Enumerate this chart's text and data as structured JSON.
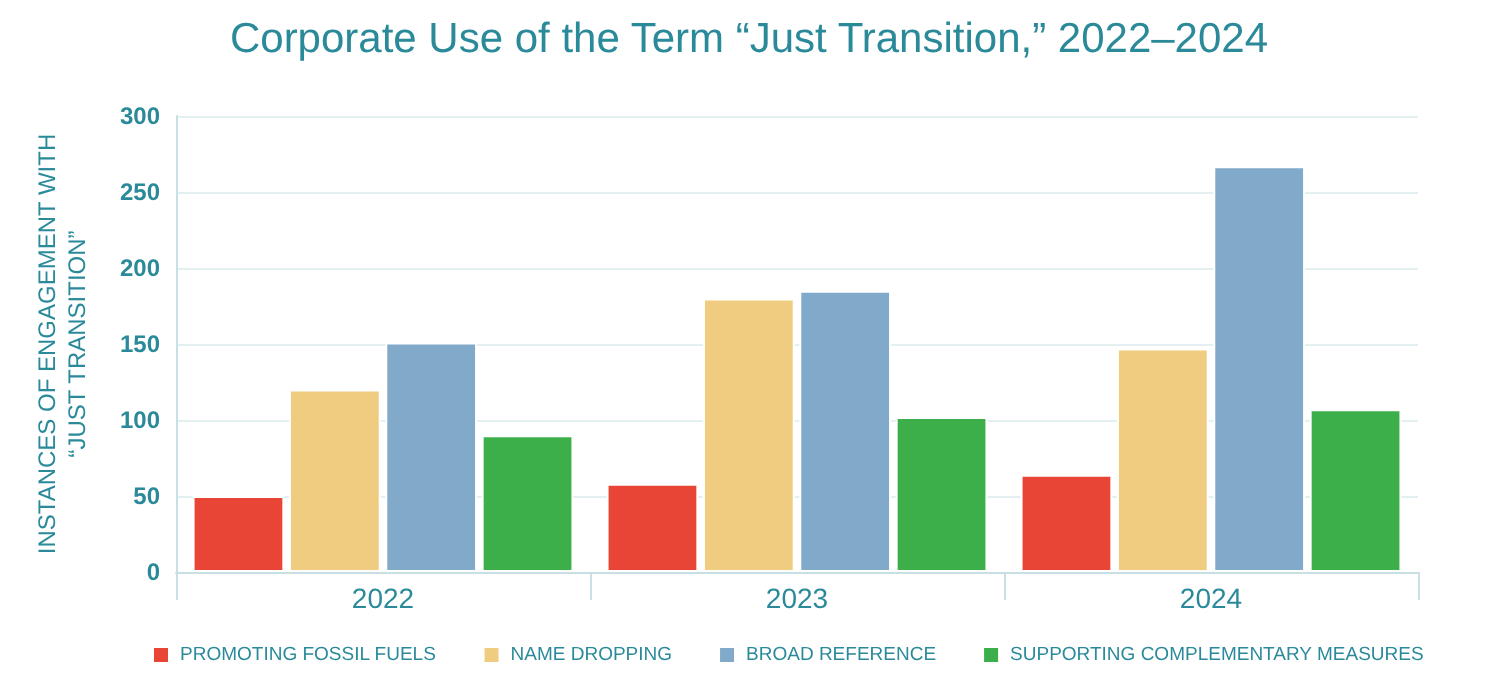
{
  "chart_data": {
    "type": "bar",
    "title": "Corporate Use of the Term “Just Transition,” 2022–2024",
    "ylabel": "INSTANCES OF ENGAGEMENT WITH\n“JUST TRANSITION”",
    "categories": [
      "2022",
      "2023",
      "2024"
    ],
    "series": [
      {
        "name": "PROMOTING FOSSIL FUELS",
        "color": "#e94536",
        "values": [
          50,
          58,
          64
        ]
      },
      {
        "name": "NAME DROPPING",
        "color": "#f0cc80",
        "values": [
          120,
          180,
          147
        ]
      },
      {
        "name": "BROAD REFERENCE",
        "color": "#80a9ca",
        "values": [
          151,
          185,
          267
        ]
      },
      {
        "name": "SUPPORTING COMPLEMENTARY MEASURES",
        "color": "#3caf4a",
        "values": [
          90,
          102,
          107
        ]
      }
    ],
    "ylim": [
      0,
      300
    ],
    "yticks": [
      0,
      50,
      100,
      150,
      200,
      250,
      300
    ],
    "grid": "y",
    "legend": "bottom"
  }
}
